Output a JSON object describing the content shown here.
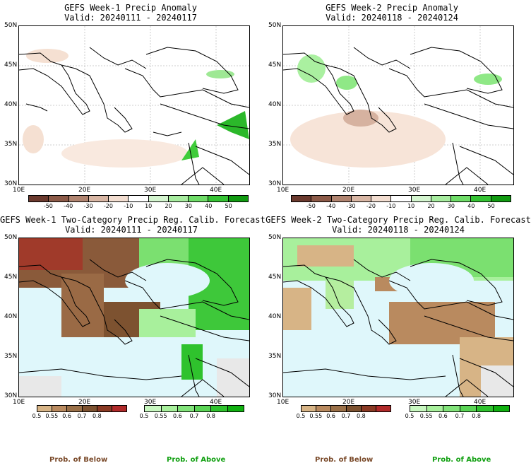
{
  "panels": {
    "tl": {
      "title": "GEFS Week-1 Precip Anomaly",
      "valid": "Valid: 20240111 - 20240117"
    },
    "tr": {
      "title": "GEFS Week-2 Precip Anomaly",
      "valid": "Valid: 20240118 - 20240124"
    },
    "bl": {
      "title": "GEFS Week-1 Two-Category Precip Reg. Calib. Forecast",
      "valid": "Valid: 20240111 - 20240117"
    },
    "br": {
      "title": "GEFS Week-2 Two-Category Precip Reg. Calib. Forecast",
      "valid": "Valid: 20240118 - 20240124"
    }
  },
  "axes": {
    "lat": [
      "50N",
      "45N",
      "40N",
      "35N",
      "30N"
    ],
    "lon": [
      "10E",
      "20E",
      "30E",
      "40E"
    ]
  },
  "anom_colorbar": {
    "ticks": [
      "-50",
      "-40",
      "-30",
      "-20",
      "-10",
      "10",
      "20",
      "30",
      "40",
      "50"
    ],
    "colors": [
      "#6b3a2e",
      "#8c5a48",
      "#b08470",
      "#d8b6a4",
      "#f2ddd0",
      "#ffffff",
      "#d4f5cf",
      "#a7ec9f",
      "#6fdc68",
      "#35c233",
      "#119a11"
    ]
  },
  "prob_colorbar": {
    "below_ticks": [
      "0.5",
      "0.55",
      "0.6",
      "0.7",
      "0.8"
    ],
    "above_ticks": [
      "0.5",
      "0.55",
      "0.6",
      "0.7",
      "0.8"
    ],
    "below_colors": [
      "#d7b486",
      "#b98a5f",
      "#9a7048",
      "#7d5230",
      "#8a3a24",
      "#b02a2a"
    ],
    "above_colors": [
      "#c8f7c0",
      "#a8f09c",
      "#82e37a",
      "#5ad455",
      "#2fc22d",
      "#10b010"
    ],
    "below_label": "Prob. of Below",
    "above_label": "Prob. of Above",
    "below_label_color": "#7a4a2a",
    "above_label_color": "#12a012"
  },
  "colors": {
    "sea": "#dff7fb",
    "dry": "#8a5a3a",
    "wet": "#66d45e",
    "outline": "#000000"
  }
}
